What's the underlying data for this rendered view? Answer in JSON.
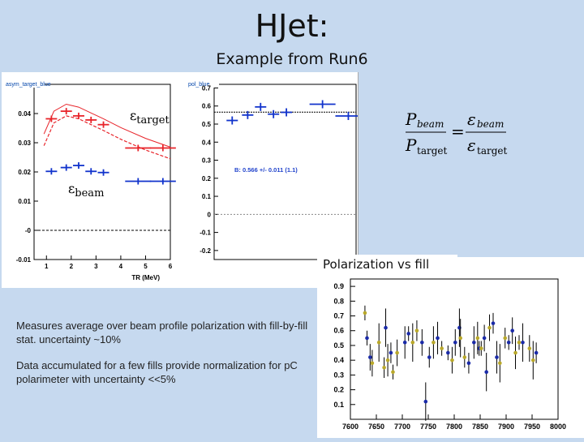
{
  "title": "HJet:",
  "subtitle": "Example from Run6",
  "eps_target_label": "εtarget",
  "eps_target_sym": "ε",
  "eps_target_sub": "target",
  "eps_beam_sym": "ε",
  "eps_beam_sub": "beam",
  "fit_result": "B: 0.566 +/- 0.011 (1.1)",
  "formula": {
    "P": "P",
    "beam": "beam",
    "target": "target",
    "eq": "=",
    "eps": "ε"
  },
  "polarization_title": "Polarization vs fill",
  "paragraphs": [
    "Measures average over beam profile polarization with fill-by-fill stat. uncertainty ~10%",
    "Data accumulated for a few fills provide normalization for pC polarimeter with uncertainty <<5%"
  ],
  "chart_data": [
    {
      "type": "scatter",
      "title": "asym_target_blue",
      "xlabel": "TR (MeV)",
      "ylabel": "",
      "xlim": [
        0.5,
        6
      ],
      "ylim": [
        -0.01,
        0.05
      ],
      "xticks": [
        "1",
        "2",
        "3",
        "4",
        "5",
        "6"
      ],
      "yticks": [
        "-0.01",
        "-0",
        "0.01",
        "0.02",
        "0.03",
        "0.04"
      ],
      "series": [
        {
          "name": "target",
          "color": "#e8242a",
          "x": [
            1.2,
            1.8,
            2.3,
            2.8,
            3.3,
            4.7,
            5.7
          ],
          "y": [
            0.0382,
            0.0408,
            0.0392,
            0.0378,
            0.0362,
            0.0282,
            0.0282
          ]
        },
        {
          "name": "beam",
          "color": "#1133cc",
          "x": [
            1.2,
            1.8,
            2.3,
            2.8,
            3.3,
            4.7,
            5.7
          ],
          "y": [
            0.0202,
            0.0215,
            0.0222,
            0.0202,
            0.0198,
            0.0168,
            0.0168
          ]
        }
      ],
      "curves": [
        {
          "name": "target-model",
          "style": "dashed",
          "x": [
            0.9,
            1.3,
            1.8,
            2.3,
            2.8,
            3.3,
            4,
            5,
            6
          ],
          "y": [
            0.033,
            0.0408,
            0.0432,
            0.0422,
            0.0402,
            0.0382,
            0.0352,
            0.0315,
            0.0285
          ]
        }
      ],
      "zero_line": true
    },
    {
      "type": "scatter",
      "title": "pol_blue",
      "xlabel": "",
      "ylabel": "",
      "ylim": [
        -0.25,
        0.72
      ],
      "yticks": [
        "-0.2",
        "-0.1",
        "0",
        "0.1",
        "0.2",
        "0.3",
        "0.4",
        "0.5",
        "0.6",
        "0.7"
      ],
      "fit": 0.566,
      "x": [
        1.2,
        1.8,
        2.3,
        2.8,
        3.3,
        4.7,
        5.7
      ],
      "y": [
        0.52,
        0.55,
        0.595,
        0.555,
        0.565,
        0.61,
        0.545
      ]
    },
    {
      "type": "scatter",
      "title": "Polarization vs fill",
      "xlim": [
        7600,
        8000
      ],
      "ylim": [
        0,
        0.95
      ],
      "xticks": [
        "7600",
        "7650",
        "7700",
        "7750",
        "7800",
        "7850",
        "7900",
        "7950",
        "8000"
      ],
      "yticks": [
        "0.1",
        "0.2",
        "0.3",
        "0.4",
        "0.5",
        "0.6",
        "0.7",
        "0.8",
        "0.9"
      ],
      "series": [
        {
          "name": "blue",
          "color": "#1a2aa8",
          "x": [
            7632,
            7638,
            7668,
            7678,
            7705,
            7712,
            7738,
            7745,
            7752,
            7768,
            7788,
            7802,
            7810,
            7828,
            7838,
            7848,
            7858,
            7862,
            7875,
            7882,
            7905,
            7912,
            7932,
            7958
          ],
          "y": [
            0.55,
            0.42,
            0.62,
            0.45,
            0.52,
            0.58,
            0.52,
            0.12,
            0.42,
            0.55,
            0.45,
            0.52,
            0.62,
            0.38,
            0.52,
            0.48,
            0.55,
            0.32,
            0.65,
            0.42,
            0.52,
            0.6,
            0.52,
            0.45
          ]
        },
        {
          "name": "yellow",
          "color": "#b9a82a",
          "x": [
            7628,
            7642,
            7655,
            7665,
            7672,
            7682,
            7690,
            7720,
            7728,
            7760,
            7776,
            7796,
            7812,
            7820,
            7845,
            7852,
            7868,
            7888,
            7898,
            7918,
            7925,
            7945,
            7952
          ],
          "y": [
            0.72,
            0.38,
            0.52,
            0.35,
            0.4,
            0.32,
            0.45,
            0.52,
            0.6,
            0.52,
            0.48,
            0.4,
            0.55,
            0.42,
            0.55,
            0.48,
            0.62,
            0.38,
            0.55,
            0.45,
            0.52,
            0.48,
            0.4
          ]
        }
      ]
    }
  ]
}
